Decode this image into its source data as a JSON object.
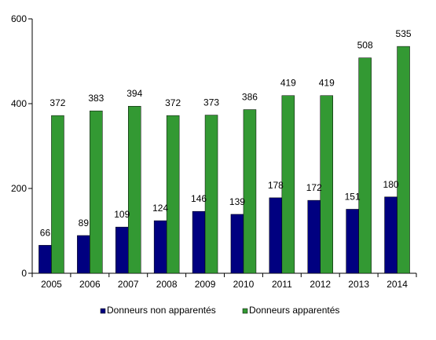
{
  "chart_data": {
    "type": "bar",
    "categories": [
      "2005",
      "2006",
      "2007",
      "2008",
      "2009",
      "2010",
      "2011",
      "2012",
      "2013",
      "2014"
    ],
    "series": [
      {
        "name": "Donneurs non apparentés",
        "color": "#000080",
        "values": [
          66,
          89,
          109,
          124,
          146,
          139,
          178,
          172,
          151,
          180
        ]
      },
      {
        "name": "Donneurs apparentés",
        "color": "#339933",
        "values": [
          372,
          383,
          394,
          372,
          373,
          386,
          419,
          419,
          508,
          535
        ]
      }
    ],
    "ylim": [
      0,
      600
    ],
    "yticks": [
      0,
      200,
      400,
      600
    ],
    "grid": false,
    "legend_position": "bottom",
    "title": "",
    "xlabel": "",
    "ylabel": ""
  }
}
